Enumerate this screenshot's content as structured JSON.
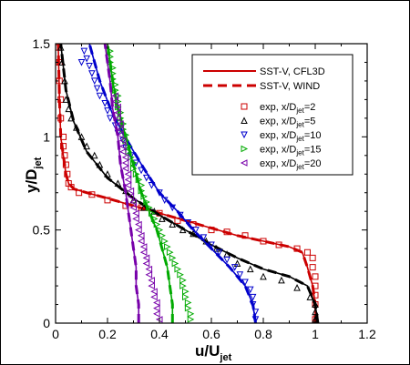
{
  "chart_data": {
    "type": "line",
    "xlabel_main": "u/U",
    "xlabel_sub": "jet",
    "ylabel_main": "y/D",
    "ylabel_sub": "jet",
    "xlim": [
      0,
      1.2
    ],
    "ylim": [
      0,
      1.5
    ],
    "xticks": [
      0,
      0.2,
      0.4,
      0.6,
      0.8,
      1,
      1.2
    ],
    "xtick_labels": [
      "0",
      "0.2",
      "0.4",
      "0.6",
      "0.8",
      "1",
      "1.2"
    ],
    "yticks": [
      0,
      0.5,
      1,
      1.5
    ],
    "ytick_labels": [
      "0",
      "0.5",
      "1",
      "1.5"
    ],
    "grid": false,
    "legend_position": "top-right",
    "lines": [
      {
        "name": "SST-V, CFL3D",
        "color": "#cc0000",
        "dash": "solid"
      },
      {
        "name": "SST-V, WIND",
        "color": "#cc0000",
        "dash": "dashed"
      }
    ],
    "experiments": [
      {
        "name_main": "exp, x/D",
        "name_sub": "jet",
        "name_tail": "=2",
        "color": "#cc0000",
        "marker": "square"
      },
      {
        "name_main": "exp, x/D",
        "name_sub": "jet",
        "name_tail": "=5",
        "color": "#000000",
        "marker": "triangle-up"
      },
      {
        "name_main": "exp, x/D",
        "name_sub": "jet",
        "name_tail": "=10",
        "color": "#0000cc",
        "marker": "triangle-down"
      },
      {
        "name_main": "exp, x/D",
        "name_sub": "jet",
        "name_tail": "=15",
        "color": "#00aa00",
        "marker": "triangle-right"
      },
      {
        "name_main": "exp, x/D",
        "name_sub": "jet",
        "name_tail": "=20",
        "color": "#7700aa",
        "marker": "triangle-left"
      }
    ],
    "series": [
      {
        "name": "x/Djet=2",
        "color": "#cc0000",
        "model": [
          [
            1.0,
            0
          ],
          [
            1.0,
            0.1
          ],
          [
            0.99,
            0.2
          ],
          [
            0.97,
            0.3
          ],
          [
            0.95,
            0.38
          ],
          [
            0.9,
            0.41
          ],
          [
            0.8,
            0.44
          ],
          [
            0.7,
            0.47
          ],
          [
            0.6,
            0.51
          ],
          [
            0.5,
            0.55
          ],
          [
            0.4,
            0.59
          ],
          [
            0.3,
            0.63
          ],
          [
            0.2,
            0.67
          ],
          [
            0.12,
            0.7
          ],
          [
            0.07,
            0.72
          ],
          [
            0.05,
            0.75
          ],
          [
            0.04,
            0.8
          ],
          [
            0.03,
            0.9
          ],
          [
            0.02,
            1.0
          ],
          [
            0.015,
            1.2
          ],
          [
            0.01,
            1.5
          ]
        ],
        "exp": [
          [
            1.0,
            0.02
          ],
          [
            1.0,
            0.1
          ],
          [
            1.0,
            0.15
          ],
          [
            1.0,
            0.2
          ],
          [
            1.0,
            0.25
          ],
          [
            0.99,
            0.3
          ],
          [
            0.99,
            0.35
          ],
          [
            0.97,
            0.38
          ],
          [
            0.93,
            0.4
          ],
          [
            0.86,
            0.42
          ],
          [
            0.8,
            0.44
          ],
          [
            0.73,
            0.47
          ],
          [
            0.66,
            0.49
          ],
          [
            0.6,
            0.5
          ],
          [
            0.53,
            0.53
          ],
          [
            0.47,
            0.55
          ],
          [
            0.4,
            0.59
          ],
          [
            0.33,
            0.62
          ],
          [
            0.27,
            0.63
          ],
          [
            0.2,
            0.66
          ],
          [
            0.14,
            0.69
          ],
          [
            0.09,
            0.7
          ],
          [
            0.06,
            0.73
          ],
          [
            0.05,
            0.75
          ],
          [
            0.045,
            0.8
          ],
          [
            0.04,
            0.85
          ],
          [
            0.035,
            0.9
          ],
          [
            0.03,
            0.95
          ],
          [
            0.03,
            1.0
          ],
          [
            0.02,
            1.1
          ],
          [
            0.02,
            1.2
          ],
          [
            0.015,
            1.3
          ],
          [
            0.015,
            1.4
          ],
          [
            0.01,
            1.48
          ]
        ]
      },
      {
        "name": "x/Djet=5",
        "color": "#000000",
        "model": [
          [
            1.01,
            0
          ],
          [
            1.0,
            0.1
          ],
          [
            0.97,
            0.2
          ],
          [
            0.9,
            0.25
          ],
          [
            0.8,
            0.29
          ],
          [
            0.7,
            0.35
          ],
          [
            0.6,
            0.42
          ],
          [
            0.5,
            0.5
          ],
          [
            0.4,
            0.58
          ],
          [
            0.3,
            0.67
          ],
          [
            0.2,
            0.78
          ],
          [
            0.12,
            0.92
          ],
          [
            0.07,
            1.08
          ],
          [
            0.04,
            1.25
          ],
          [
            0.02,
            1.5
          ]
        ],
        "exp": [
          [
            1.0,
            0.02
          ],
          [
            1.0,
            0.06
          ],
          [
            1.0,
            0.1
          ],
          [
            0.98,
            0.14
          ],
          [
            0.93,
            0.19
          ],
          [
            0.87,
            0.23
          ],
          [
            0.8,
            0.25
          ],
          [
            0.75,
            0.29
          ],
          [
            0.7,
            0.32
          ],
          [
            0.66,
            0.37
          ],
          [
            0.62,
            0.4
          ],
          [
            0.58,
            0.44
          ],
          [
            0.53,
            0.48
          ],
          [
            0.49,
            0.5
          ],
          [
            0.45,
            0.53
          ],
          [
            0.41,
            0.56
          ],
          [
            0.38,
            0.6
          ],
          [
            0.34,
            0.62
          ],
          [
            0.3,
            0.66
          ],
          [
            0.27,
            0.71
          ],
          [
            0.24,
            0.75
          ],
          [
            0.2,
            0.8
          ],
          [
            0.17,
            0.85
          ],
          [
            0.15,
            0.9
          ],
          [
            0.12,
            0.95
          ],
          [
            0.1,
            1.0
          ],
          [
            0.08,
            1.05
          ],
          [
            0.06,
            1.1
          ],
          [
            0.05,
            1.15
          ],
          [
            0.04,
            1.2
          ],
          [
            0.035,
            1.3
          ],
          [
            0.025,
            1.4
          ],
          [
            0.02,
            1.48
          ]
        ]
      },
      {
        "name": "x/Djet=10",
        "color": "#0000cc",
        "model": [
          [
            0.77,
            0
          ],
          [
            0.76,
            0.1
          ],
          [
            0.73,
            0.2
          ],
          [
            0.67,
            0.3
          ],
          [
            0.6,
            0.4
          ],
          [
            0.53,
            0.5
          ],
          [
            0.47,
            0.6
          ],
          [
            0.4,
            0.7
          ],
          [
            0.34,
            0.83
          ],
          [
            0.28,
            0.97
          ],
          [
            0.22,
            1.12
          ],
          [
            0.17,
            1.3
          ],
          [
            0.13,
            1.5
          ]
        ],
        "exp": [
          [
            0.77,
            0.02
          ],
          [
            0.77,
            0.06
          ],
          [
            0.76,
            0.1
          ],
          [
            0.76,
            0.14
          ],
          [
            0.75,
            0.18
          ],
          [
            0.73,
            0.22
          ],
          [
            0.71,
            0.26
          ],
          [
            0.69,
            0.3
          ],
          [
            0.66,
            0.34
          ],
          [
            0.63,
            0.38
          ],
          [
            0.6,
            0.42
          ],
          [
            0.57,
            0.46
          ],
          [
            0.54,
            0.5
          ],
          [
            0.51,
            0.54
          ],
          [
            0.48,
            0.58
          ],
          [
            0.45,
            0.62
          ],
          [
            0.42,
            0.66
          ],
          [
            0.4,
            0.7
          ],
          [
            0.37,
            0.74
          ],
          [
            0.35,
            0.78
          ],
          [
            0.33,
            0.82
          ],
          [
            0.31,
            0.86
          ],
          [
            0.29,
            0.9
          ],
          [
            0.27,
            0.94
          ],
          [
            0.26,
            0.98
          ],
          [
            0.24,
            1.02
          ],
          [
            0.23,
            1.06
          ],
          [
            0.21,
            1.1
          ],
          [
            0.2,
            1.14
          ],
          [
            0.19,
            1.18
          ],
          [
            0.17,
            1.22
          ],
          [
            0.16,
            1.26
          ],
          [
            0.15,
            1.3
          ],
          [
            0.14,
            1.34
          ],
          [
            0.13,
            1.38
          ],
          [
            0.12,
            1.42
          ],
          [
            0.11,
            1.46
          ],
          [
            0.1,
            1.4
          ]
        ]
      },
      {
        "name": "x/Djet=15",
        "color": "#00aa00",
        "model": [
          [
            0.45,
            0
          ],
          [
            0.45,
            0.1
          ],
          [
            0.44,
            0.2
          ],
          [
            0.43,
            0.3
          ],
          [
            0.41,
            0.4
          ],
          [
            0.39,
            0.5
          ],
          [
            0.36,
            0.6
          ],
          [
            0.33,
            0.7
          ],
          [
            0.3,
            0.85
          ],
          [
            0.27,
            1.0
          ],
          [
            0.24,
            1.15
          ],
          [
            0.22,
            1.3
          ],
          [
            0.2,
            1.5
          ]
        ],
        "exp": [
          [
            0.52,
            0.02
          ],
          [
            0.52,
            0.05
          ],
          [
            0.51,
            0.08
          ],
          [
            0.51,
            0.11
          ],
          [
            0.5,
            0.14
          ],
          [
            0.5,
            0.17
          ],
          [
            0.49,
            0.2
          ],
          [
            0.49,
            0.23
          ],
          [
            0.48,
            0.26
          ],
          [
            0.47,
            0.29
          ],
          [
            0.46,
            0.32
          ],
          [
            0.45,
            0.35
          ],
          [
            0.44,
            0.38
          ],
          [
            0.43,
            0.41
          ],
          [
            0.42,
            0.44
          ],
          [
            0.41,
            0.47
          ],
          [
            0.4,
            0.5
          ],
          [
            0.39,
            0.53
          ],
          [
            0.38,
            0.56
          ],
          [
            0.37,
            0.59
          ],
          [
            0.36,
            0.62
          ],
          [
            0.35,
            0.65
          ],
          [
            0.34,
            0.68
          ],
          [
            0.33,
            0.71
          ],
          [
            0.33,
            0.74
          ],
          [
            0.32,
            0.77
          ],
          [
            0.31,
            0.8
          ],
          [
            0.3,
            0.83
          ],
          [
            0.3,
            0.86
          ],
          [
            0.29,
            0.89
          ],
          [
            0.28,
            0.92
          ],
          [
            0.28,
            0.95
          ],
          [
            0.27,
            0.98
          ],
          [
            0.27,
            1.01
          ],
          [
            0.26,
            1.04
          ],
          [
            0.26,
            1.07
          ],
          [
            0.25,
            1.1
          ],
          [
            0.25,
            1.13
          ],
          [
            0.24,
            1.16
          ],
          [
            0.24,
            1.19
          ],
          [
            0.24,
            1.22
          ],
          [
            0.23,
            1.25
          ],
          [
            0.23,
            1.28
          ],
          [
            0.22,
            1.31
          ],
          [
            0.22,
            1.34
          ],
          [
            0.22,
            1.37
          ],
          [
            0.21,
            1.4
          ],
          [
            0.21,
            1.43
          ],
          [
            0.21,
            1.46
          ]
        ]
      },
      {
        "name": "x/Djet=20",
        "color": "#7700aa",
        "model": [
          [
            0.32,
            0
          ],
          [
            0.32,
            0.1
          ],
          [
            0.31,
            0.2
          ],
          [
            0.31,
            0.3
          ],
          [
            0.3,
            0.4
          ],
          [
            0.29,
            0.5
          ],
          [
            0.28,
            0.6
          ],
          [
            0.27,
            0.7
          ],
          [
            0.25,
            0.85
          ],
          [
            0.24,
            1.0
          ],
          [
            0.22,
            1.15
          ],
          [
            0.21,
            1.3
          ],
          [
            0.19,
            1.5
          ]
        ],
        "exp": [
          [
            0.4,
            0.02
          ],
          [
            0.39,
            0.05
          ],
          [
            0.39,
            0.08
          ],
          [
            0.39,
            0.11
          ],
          [
            0.38,
            0.14
          ],
          [
            0.38,
            0.17
          ],
          [
            0.37,
            0.2
          ],
          [
            0.37,
            0.23
          ],
          [
            0.36,
            0.26
          ],
          [
            0.36,
            0.29
          ],
          [
            0.35,
            0.32
          ],
          [
            0.35,
            0.35
          ],
          [
            0.34,
            0.38
          ],
          [
            0.34,
            0.41
          ],
          [
            0.33,
            0.44
          ],
          [
            0.33,
            0.47
          ],
          [
            0.32,
            0.5
          ],
          [
            0.32,
            0.53
          ],
          [
            0.31,
            0.56
          ],
          [
            0.31,
            0.59
          ],
          [
            0.3,
            0.62
          ],
          [
            0.3,
            0.65
          ],
          [
            0.29,
            0.68
          ],
          [
            0.29,
            0.71
          ],
          [
            0.28,
            0.74
          ],
          [
            0.28,
            0.77
          ],
          [
            0.28,
            0.8
          ],
          [
            0.27,
            0.83
          ],
          [
            0.27,
            0.86
          ],
          [
            0.27,
            0.89
          ],
          [
            0.26,
            0.92
          ],
          [
            0.26,
            0.95
          ],
          [
            0.26,
            0.98
          ],
          [
            0.25,
            1.01
          ],
          [
            0.25,
            1.04
          ],
          [
            0.25,
            1.07
          ],
          [
            0.24,
            1.1
          ],
          [
            0.24,
            1.13
          ],
          [
            0.24,
            1.16
          ],
          [
            0.23,
            1.19
          ],
          [
            0.23,
            1.22
          ]
        ]
      }
    ]
  }
}
